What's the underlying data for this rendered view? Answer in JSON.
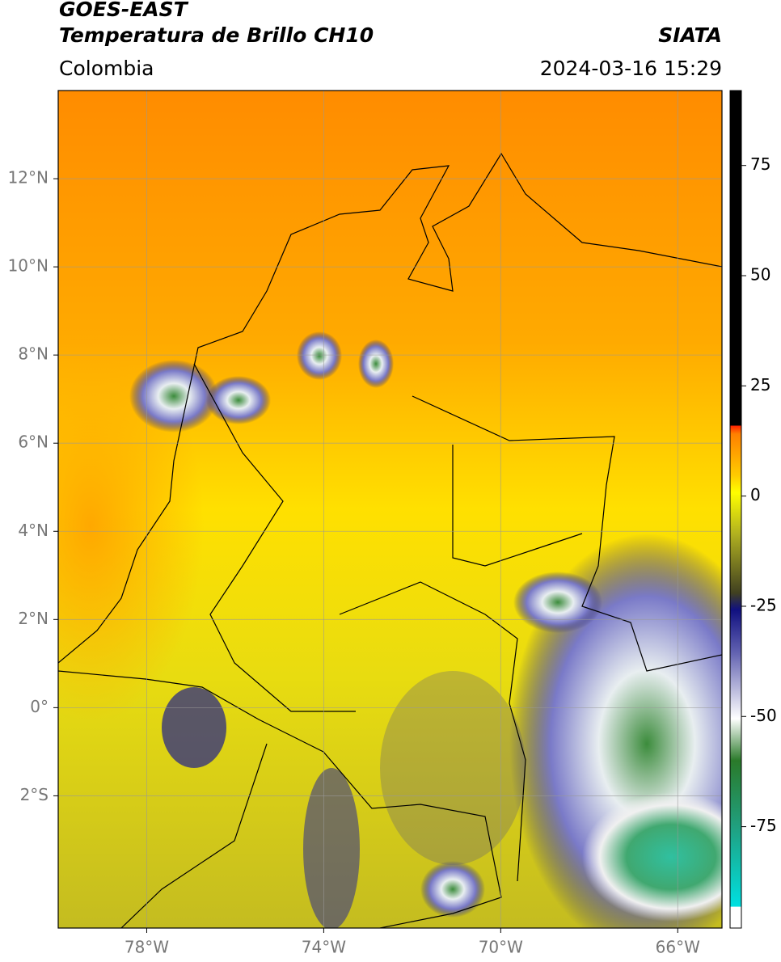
{
  "header": {
    "title": "GOES-EAST",
    "subtitle": "Temperatura de Brillo CH10",
    "credit": "SIATA",
    "region": "Colombia",
    "timestamp": "2024-03-16 15:29"
  },
  "map": {
    "xlim": [
      -80,
      -65
    ],
    "ylim": [
      -5,
      14
    ],
    "xticks": [
      {
        "value": -78,
        "label": "78°W"
      },
      {
        "value": -74,
        "label": "74°W"
      },
      {
        "value": -70,
        "label": "70°W"
      },
      {
        "value": -66,
        "label": "66°W"
      }
    ],
    "yticks": [
      {
        "value": 12,
        "label": "12°N"
      },
      {
        "value": 10,
        "label": "10°N"
      },
      {
        "value": 8,
        "label": "8°N"
      },
      {
        "value": 6,
        "label": "6°N"
      },
      {
        "value": 4,
        "label": "4°N"
      },
      {
        "value": 2,
        "label": "2°N"
      },
      {
        "value": 0,
        "label": "0°"
      },
      {
        "value": -2,
        "label": "2°S"
      }
    ]
  },
  "colorbar": {
    "clim": [
      -98,
      92
    ],
    "ticks": [
      75,
      50,
      25,
      0,
      -25,
      -50,
      -75
    ]
  }
}
